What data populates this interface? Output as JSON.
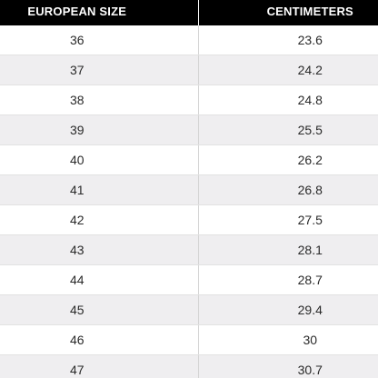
{
  "table": {
    "headers": [
      "EUROPEAN SIZE",
      "CENTIMETERS"
    ],
    "rows": [
      {
        "european_size": "36",
        "centimeters": "23.6"
      },
      {
        "european_size": "37",
        "centimeters": "24.2"
      },
      {
        "european_size": "38",
        "centimeters": "24.8"
      },
      {
        "european_size": "39",
        "centimeters": "25.5"
      },
      {
        "european_size": "40",
        "centimeters": "26.2"
      },
      {
        "european_size": "41",
        "centimeters": "26.8"
      },
      {
        "european_size": "42",
        "centimeters": "27.5"
      },
      {
        "european_size": "43",
        "centimeters": "28.1"
      },
      {
        "european_size": "44",
        "centimeters": "28.7"
      },
      {
        "european_size": "45",
        "centimeters": "29.4"
      },
      {
        "european_size": "46",
        "centimeters": "30"
      },
      {
        "european_size": "47",
        "centimeters": "30.7"
      }
    ]
  },
  "colors": {
    "header_bg": "#000000",
    "header_text": "#ffffff",
    "row_alt_bg": "#efeef0",
    "row_bg": "#ffffff"
  }
}
